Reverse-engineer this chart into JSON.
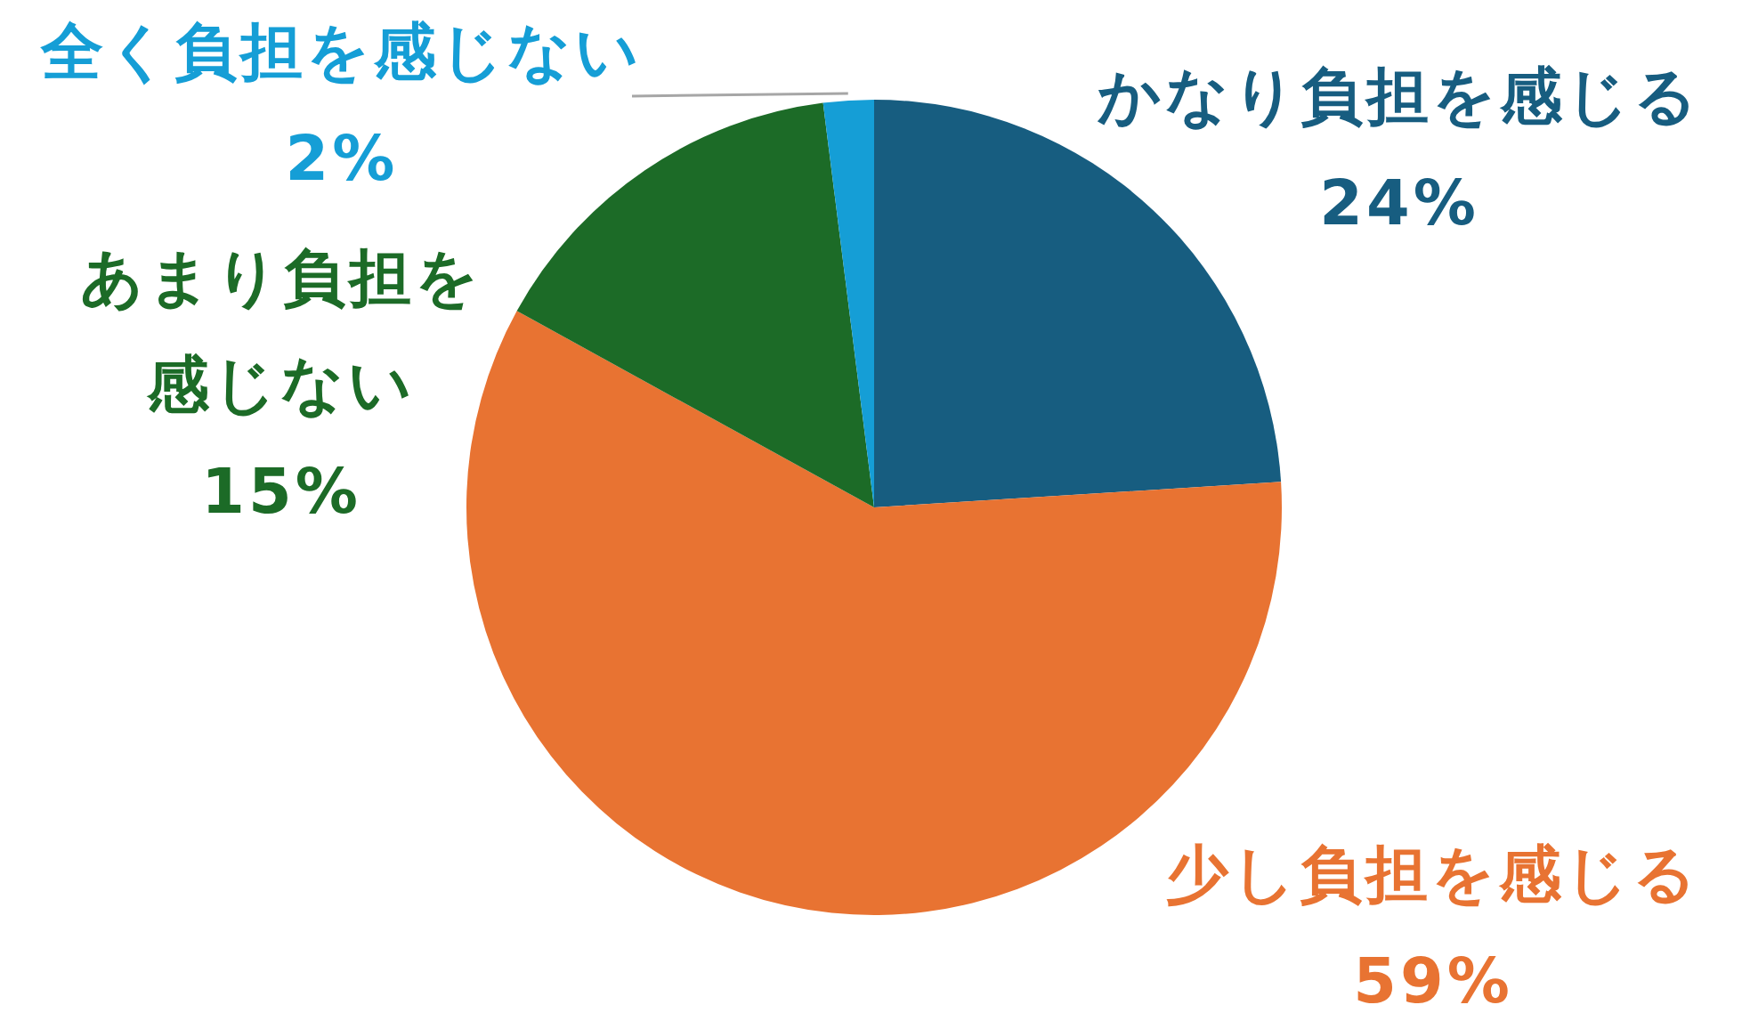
{
  "chart_data": {
    "type": "pie",
    "categories": [
      "かなり負担を感じる",
      "少し負担を感じる",
      "あまり負担を感じない",
      "全く負担を感じない"
    ],
    "values": [
      24,
      59,
      15,
      2
    ],
    "colors": [
      "#175d80",
      "#e87332",
      "#1c6b27",
      "#159ed6"
    ],
    "value_labels": [
      "24%",
      "59%",
      "15%",
      "2%"
    ]
  }
}
